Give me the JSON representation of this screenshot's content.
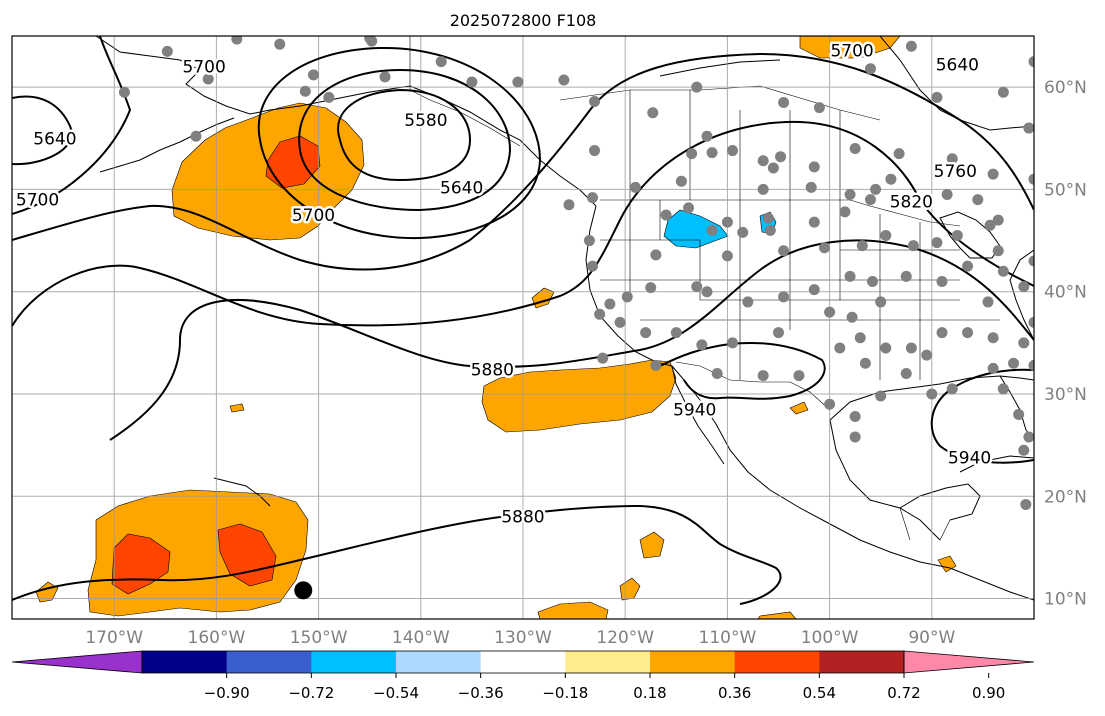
{
  "title": "2025072800 F108",
  "map": {
    "lon_range": [
      -180,
      -80
    ],
    "lat_range": [
      8,
      65
    ],
    "lon_ticks": [
      {
        "value": -170,
        "label": "170°W"
      },
      {
        "value": -160,
        "label": "160°W"
      },
      {
        "value": -150,
        "label": "150°W"
      },
      {
        "value": -140,
        "label": "140°W"
      },
      {
        "value": -130,
        "label": "130°W"
      },
      {
        "value": -120,
        "label": "120°W"
      },
      {
        "value": -110,
        "label": "110°W"
      },
      {
        "value": -100,
        "label": "100°W"
      },
      {
        "value": -90,
        "label": "90°W"
      }
    ],
    "lat_ticks": [
      {
        "value": 10,
        "label": "10°N"
      },
      {
        "value": 20,
        "label": "20°N"
      },
      {
        "value": 30,
        "label": "30°N"
      },
      {
        "value": 40,
        "label": "40°N"
      },
      {
        "value": 50,
        "label": "50°N"
      },
      {
        "value": 60,
        "label": "60°N"
      }
    ],
    "grid": true,
    "contour_labels": [
      {
        "text": "5580",
        "lon": -139.5,
        "lat": 56.8
      },
      {
        "text": "5640",
        "lon": -136.0,
        "lat": 50.2
      },
      {
        "text": "5700",
        "lon": -161.2,
        "lat": 62.0
      },
      {
        "text": "5640",
        "lon": -175.8,
        "lat": 55.0
      },
      {
        "text": "5700",
        "lon": -177.5,
        "lat": 49.0
      },
      {
        "text": "5700",
        "lon": -150.5,
        "lat": 47.5
      },
      {
        "text": "5700",
        "lon": -97.8,
        "lat": 63.6
      },
      {
        "text": "5640",
        "lon": -87.5,
        "lat": 62.2
      },
      {
        "text": "5760",
        "lon": -87.7,
        "lat": 51.8
      },
      {
        "text": "5820",
        "lon": -92.0,
        "lat": 48.8
      },
      {
        "text": "5880",
        "lon": -133.0,
        "lat": 32.4
      },
      {
        "text": "5940",
        "lon": -113.2,
        "lat": 28.5
      },
      {
        "text": "5940",
        "lon": -86.3,
        "lat": 23.8
      },
      {
        "text": "5880",
        "lon": -130.0,
        "lat": 18.0
      }
    ],
    "marker": {
      "lon": -151.5,
      "lat": 10.8
    }
  },
  "colorbar": {
    "colors": [
      "#9932cc",
      "#00008b",
      "#3a5fcd",
      "#00bfff",
      "#add8ff",
      "#ffffff",
      "#ffec8b",
      "#ffa500",
      "#ff4500",
      "#b22222",
      "#ff87a8"
    ],
    "ticks": [
      "−0.90",
      "−0.72",
      "−0.54",
      "−0.36",
      "−0.18",
      "0.18",
      "0.36",
      "0.54",
      "0.72",
      "0.90"
    ]
  }
}
